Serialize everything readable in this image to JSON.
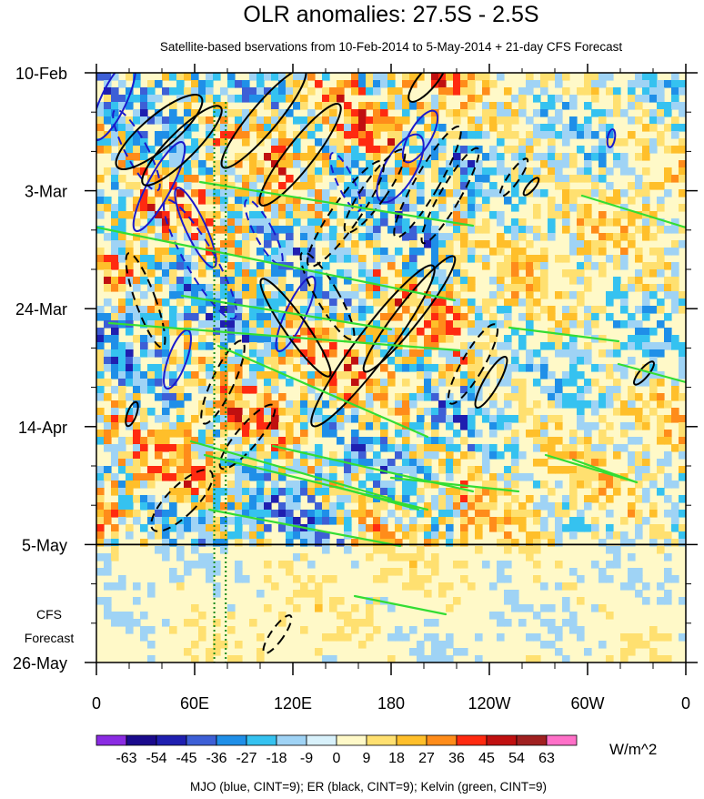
{
  "chart_data": {
    "type": "heatmap",
    "title": "OLR anomalies: 27.5S - 2.5S",
    "subtitle": "Satellite-based bservations from 10-Feb-2014 to 5-May-2014 + 21-day CFS Forecast",
    "x_ticks": [
      "0",
      "60E",
      "120E",
      "180",
      "120W",
      "60W",
      "0"
    ],
    "x_tick_values": [
      0,
      60,
      120,
      180,
      240,
      300,
      360
    ],
    "x_range": [
      0,
      360
    ],
    "y_ticks": [
      "10-Feb",
      "3-Mar",
      "24-Mar",
      "14-Apr",
      "5-May",
      "26-May"
    ],
    "y_tick_days": [
      0,
      21,
      42,
      63,
      84,
      105
    ],
    "y_range_days": [
      0,
      105
    ],
    "y_direction": "time increases downward",
    "forecast_start_label": "5-May",
    "forecast_label_lines": [
      "CFS",
      "Forecast"
    ],
    "dotted_lines_lon": [
      72,
      79
    ],
    "colorbar": {
      "levels": [
        "-63",
        "-54",
        "-45",
        "-36",
        "-27",
        "-18",
        "-9",
        "0",
        "9",
        "18",
        "27",
        "36",
        "45",
        "54",
        "63"
      ],
      "colors": [
        "#8a2be2",
        "#1a0a8c",
        "#1f1fb0",
        "#3d5fd6",
        "#1f8fe8",
        "#35c2f0",
        "#9fd3f5",
        "#d8f1fb",
        "#fff9c8",
        "#ffe070",
        "#ffbf2a",
        "#ff8c1a",
        "#ff2a10",
        "#c01010",
        "#a02020",
        "#ff70c8"
      ],
      "units": "W/m^2"
    },
    "contour_legend": "MJO (blue, CINT=9); ER (black, CINT=9); Kelvin (green, CINT=9)",
    "series_colors": {
      "MJO": "#1a1acc",
      "ER": "#000000",
      "Kelvin": "#33dd33"
    }
  }
}
